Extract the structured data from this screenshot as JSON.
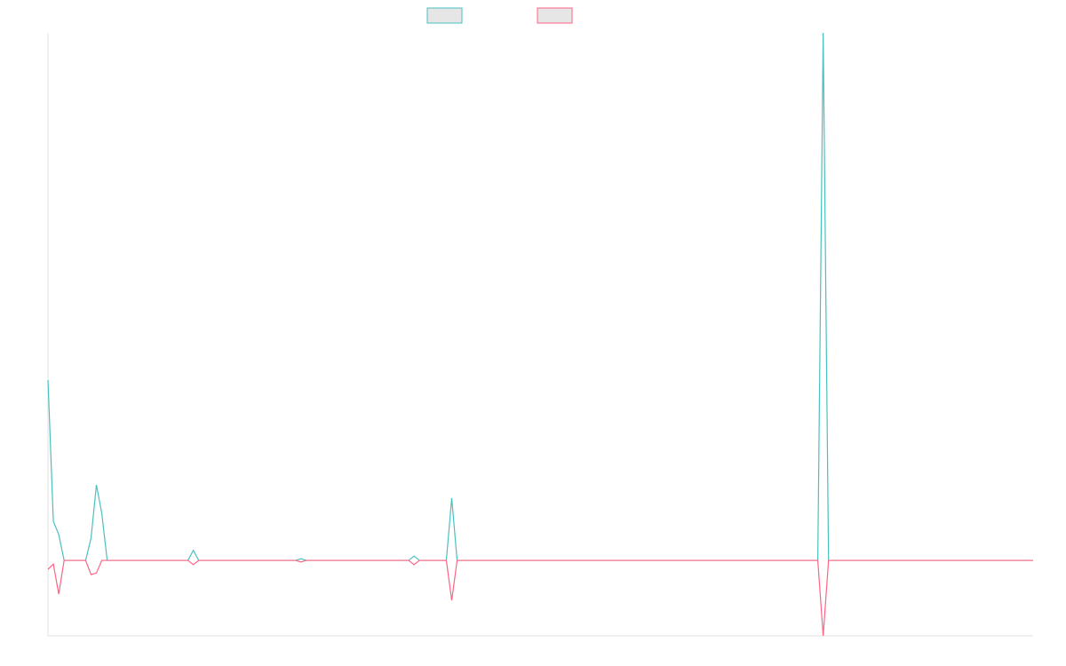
{
  "chart_data": {
    "type": "line",
    "x": [
      0,
      1,
      2,
      3,
      7,
      8,
      9,
      10,
      11,
      26,
      27,
      28,
      46,
      47,
      48,
      67,
      68,
      69,
      74,
      75,
      76,
      143,
      144,
      145,
      183
    ],
    "xlim": [
      0,
      183
    ],
    "ylim": [
      -14.3,
      100
    ],
    "series": [
      {
        "color": "#4bc0c0",
        "values": [
          34.2,
          7.4,
          4.9,
          0,
          0,
          4.2,
          14.3,
          8.9,
          0,
          0,
          1.9,
          0,
          0,
          0.3,
          0,
          0,
          0.8,
          0,
          0,
          11.8,
          0,
          0,
          100,
          0,
          0
        ]
      },
      {
        "color": "#ff6384",
        "values": [
          -1.7,
          -0.7,
          -6.4,
          0,
          0,
          -2.7,
          -2.4,
          0,
          0,
          0,
          -0.8,
          0,
          0,
          -0.3,
          0,
          0,
          -0.8,
          0,
          0,
          -7.6,
          0,
          0,
          -14.3,
          0,
          0
        ]
      }
    ]
  }
}
